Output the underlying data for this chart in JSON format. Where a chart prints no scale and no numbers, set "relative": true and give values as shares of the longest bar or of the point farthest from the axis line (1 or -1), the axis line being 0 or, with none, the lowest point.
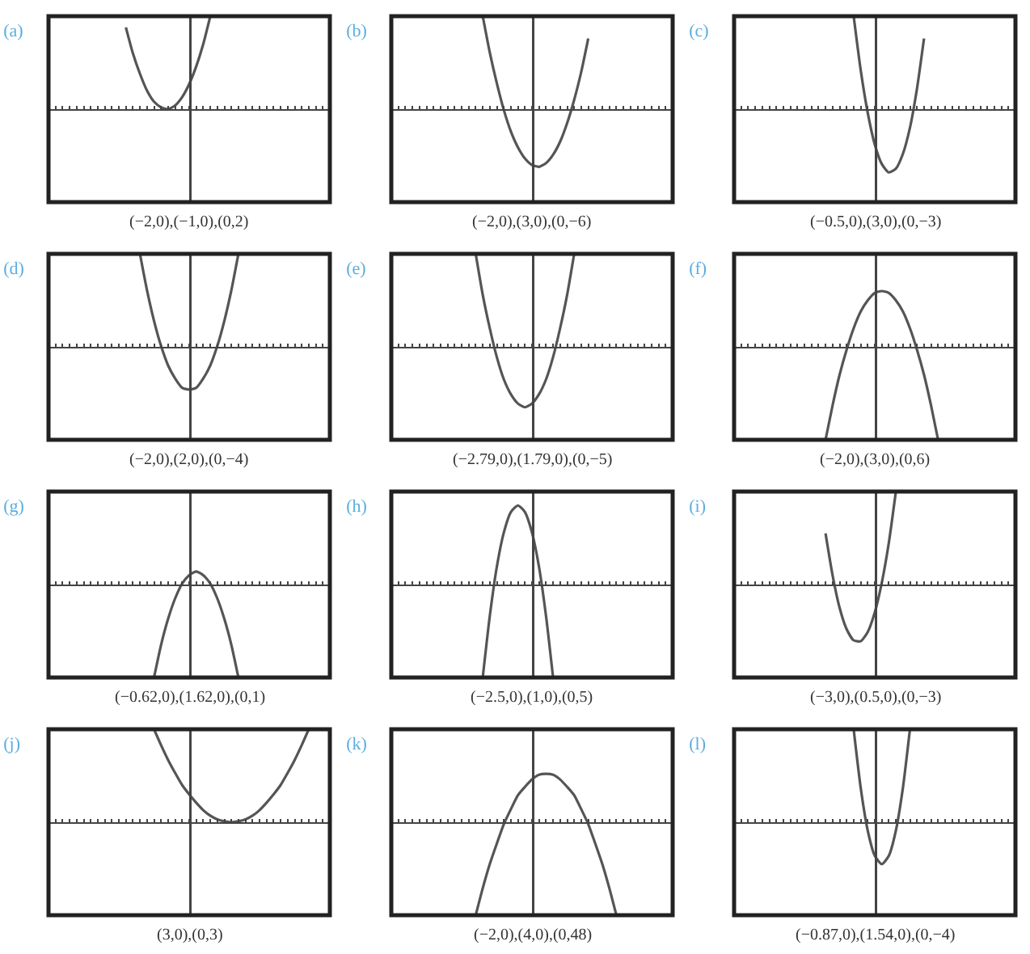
{
  "chart_data": [
    {
      "type": "line",
      "title": "(a)",
      "relative": true,
      "color": "#555555",
      "annotations": [
        "(−2,0),(−1,0),(0,2)"
      ],
      "categories": [
        null,
        null,
        null,
        null,
        null,
        null,
        null,
        null,
        null,
        null,
        null,
        null,
        null,
        null,
        null,
        null,
        null,
        null,
        null,
        null,
        null,
        null,
        null,
        null,
        null,
        null,
        null,
        null,
        null,
        null,
        null,
        null,
        null,
        null,
        null,
        null,
        null,
        null,
        null,
        null,
        null
      ],
      "values": [
        null,
        null,
        null,
        null,
        null,
        null,
        null,
        null,
        null,
        null,
        null,
        0.88,
        0.6,
        0.38,
        0.2,
        0.08,
        0.02,
        0.0,
        0.04,
        0.13,
        0.27,
        0.46,
        0.7,
        1.0,
        null,
        null,
        null,
        null,
        null,
        null,
        null,
        null,
        null,
        null,
        null,
        null,
        null,
        null,
        null,
        null,
        null
      ]
    },
    {
      "type": "line",
      "title": "(b)",
      "relative": true,
      "color": "#555555",
      "annotations": [
        "(−2,0),(3,0),(0,−6)"
      ],
      "categories": [
        null,
        null,
        null,
        null,
        null,
        null,
        null,
        null,
        null,
        null,
        null,
        null,
        null,
        null,
        null,
        null,
        null,
        null,
        null,
        null,
        null,
        null,
        null,
        null,
        null,
        null,
        null,
        null,
        null,
        null,
        null,
        null,
        null,
        null,
        null,
        null,
        null,
        null,
        null,
        null,
        null
      ],
      "values": [
        null,
        null,
        null,
        null,
        null,
        null,
        null,
        null,
        null,
        null,
        null,
        null,
        null,
        1.0,
        0.61,
        0.28,
        -0.01,
        -0.24,
        -0.41,
        -0.53,
        -0.6,
        -0.62,
        -0.58,
        -0.49,
        -0.35,
        -0.15,
        0.1,
        0.4,
        0.76,
        null,
        null,
        null,
        null,
        null,
        null,
        null,
        null,
        null,
        null,
        null,
        null
      ]
    },
    {
      "type": "line",
      "title": "(c)",
      "relative": true,
      "color": "#555555",
      "annotations": [
        "(−0.5,0),(3,0),(0,−3)"
      ],
      "categories": [
        null,
        null,
        null,
        null,
        null,
        null,
        null,
        null,
        null,
        null,
        null,
        null,
        null,
        null,
        null,
        null,
        null,
        null,
        null,
        null,
        null,
        null,
        null,
        null,
        null,
        null,
        null,
        null,
        null,
        null,
        null,
        null,
        null,
        null,
        null,
        null,
        null,
        null,
        null,
        null,
        null
      ],
      "values": [
        null,
        null,
        null,
        null,
        null,
        null,
        null,
        null,
        null,
        null,
        null,
        null,
        null,
        null,
        null,
        null,
        null,
        1.0,
        0.42,
        -0.04,
        -0.38,
        -0.59,
        -0.68,
        -0.64,
        -0.48,
        -0.2,
        0.22,
        0.76,
        null,
        null,
        null,
        null,
        null,
        null,
        null,
        null,
        null,
        null,
        null,
        null,
        null
      ]
    },
    {
      "type": "line",
      "title": "(d)",
      "relative": true,
      "color": "#555555",
      "annotations": [
        "(−2,0),(2,0),(0,−4)"
      ],
      "categories": [
        null,
        null,
        null,
        null,
        null,
        null,
        null,
        null,
        null,
        null,
        null,
        null,
        null,
        null,
        null,
        null,
        null,
        null,
        null,
        null,
        null,
        null,
        null,
        null,
        null,
        null,
        null,
        null,
        null,
        null,
        null,
        null,
        null,
        null,
        null,
        null,
        null,
        null,
        null,
        null,
        null
      ],
      "values": [
        null,
        null,
        null,
        null,
        null,
        null,
        null,
        null,
        null,
        null,
        null,
        null,
        null,
        1.0,
        0.61,
        0.28,
        0.01,
        -0.2,
        -0.34,
        -0.44,
        -0.46,
        -0.44,
        -0.34,
        -0.2,
        0.01,
        0.28,
        0.61,
        1.0,
        null,
        null,
        null,
        null,
        null,
        null,
        null,
        null,
        null,
        null,
        null,
        null,
        null
      ]
    },
    {
      "type": "line",
      "title": "(e)",
      "relative": true,
      "color": "#555555",
      "annotations": [
        "(−2.79,0),(1.79,0),(0,−5)"
      ],
      "categories": [
        null,
        null,
        null,
        null,
        null,
        null,
        null,
        null,
        null,
        null,
        null,
        null,
        null,
        null,
        null,
        null,
        null,
        null,
        null,
        null,
        null,
        null,
        null,
        null,
        null,
        null,
        null,
        null,
        null,
        null,
        null,
        null,
        null,
        null,
        null,
        null,
        null,
        null,
        null,
        null,
        null
      ],
      "values": [
        null,
        null,
        null,
        null,
        null,
        null,
        null,
        null,
        null,
        null,
        null,
        null,
        1.0,
        0.56,
        0.2,
        -0.11,
        -0.35,
        -0.51,
        -0.61,
        -0.65,
        -0.61,
        -0.51,
        -0.35,
        -0.11,
        0.2,
        0.56,
        1.0,
        null,
        null,
        null,
        null,
        null,
        null,
        null,
        null,
        null,
        null,
        null,
        null,
        null,
        null
      ]
    },
    {
      "type": "line",
      "title": "(f)",
      "relative": true,
      "color": "#555555",
      "annotations": [
        "(−2,0),(3,0),(0,6)"
      ],
      "categories": [
        null,
        null,
        null,
        null,
        null,
        null,
        null,
        null,
        null,
        null,
        null,
        null,
        null,
        null,
        null,
        null,
        null,
        null,
        null,
        null,
        null,
        null,
        null,
        null,
        null,
        null,
        null,
        null,
        null,
        null,
        null,
        null,
        null,
        null,
        null,
        null,
        null,
        null,
        null,
        null,
        null
      ],
      "values": [
        null,
        null,
        null,
        null,
        null,
        null,
        null,
        null,
        null,
        null,
        null,
        null,
        null,
        -1.0,
        -0.63,
        -0.3,
        -0.03,
        0.2,
        0.38,
        0.5,
        0.58,
        0.6,
        0.58,
        0.5,
        0.38,
        0.2,
        -0.03,
        -0.3,
        -0.63,
        -1.0,
        null,
        null,
        null,
        null,
        null,
        null,
        null,
        null,
        null,
        null,
        null
      ]
    },
    {
      "type": "line",
      "title": "(g)",
      "relative": true,
      "color": "#555555",
      "annotations": [
        "(−0.62,0),(1.62,0),(0,1)"
      ],
      "categories": [
        null,
        null,
        null,
        null,
        null,
        null,
        null,
        null,
        null,
        null,
        null,
        null,
        null,
        null,
        null,
        null,
        null,
        null,
        null,
        null,
        null,
        null,
        null,
        null,
        null,
        null,
        null,
        null,
        null,
        null,
        null,
        null,
        null,
        null,
        null,
        null,
        null,
        null,
        null,
        null,
        null
      ],
      "values": [
        null,
        null,
        null,
        null,
        null,
        null,
        null,
        null,
        null,
        null,
        null,
        null,
        null,
        null,
        null,
        -1.0,
        -0.65,
        -0.37,
        -0.15,
        0.01,
        0.1,
        0.14,
        0.1,
        0.01,
        -0.15,
        -0.37,
        -0.65,
        -1.0,
        null,
        null,
        null,
        null,
        null,
        null,
        null,
        null,
        null,
        null,
        null,
        null,
        null
      ]
    },
    {
      "type": "line",
      "title": "(h)",
      "relative": true,
      "color": "#555555",
      "annotations": [
        "(−2.5,0),(1,0),(0,5)"
      ],
      "categories": [
        null,
        null,
        null,
        null,
        null,
        null,
        null,
        null,
        null,
        null,
        null,
        null,
        null,
        null,
        null,
        null,
        null,
        null,
        null,
        null,
        null,
        null,
        null,
        null,
        null,
        null,
        null,
        null,
        null,
        null,
        null,
        null,
        null,
        null,
        null,
        null,
        null,
        null,
        null,
        null,
        null
      ],
      "values": [
        null,
        null,
        null,
        null,
        null,
        null,
        null,
        null,
        null,
        null,
        null,
        null,
        null,
        -1.0,
        -0.34,
        0.19,
        0.56,
        0.78,
        0.85,
        0.78,
        0.56,
        0.19,
        -0.34,
        -1.0,
        null,
        null,
        null,
        null,
        null,
        null,
        null,
        null,
        null,
        null,
        null,
        null,
        null,
        null,
        null,
        null,
        null
      ]
    },
    {
      "type": "line",
      "title": "(i)",
      "relative": true,
      "color": "#555555",
      "annotations": [
        "(−3,0),(0.5,0),(0,−3)"
      ],
      "categories": [
        null,
        null,
        null,
        null,
        null,
        null,
        null,
        null,
        null,
        null,
        null,
        null,
        null,
        null,
        null,
        null,
        null,
        null,
        null,
        null,
        null,
        null,
        null,
        null,
        null,
        null,
        null,
        null,
        null,
        null,
        null,
        null,
        null,
        null,
        null,
        null,
        null,
        null,
        null,
        null,
        null
      ],
      "values": [
        null,
        null,
        null,
        null,
        null,
        null,
        null,
        null,
        null,
        null,
        null,
        null,
        null,
        0.55,
        0.1,
        -0.25,
        -0.48,
        -0.6,
        -0.61,
        -0.51,
        -0.3,
        0.02,
        0.45,
        1.0,
        null,
        null,
        null,
        null,
        null,
        null,
        null,
        null,
        null,
        null,
        null,
        null,
        null,
        null,
        null,
        null,
        null
      ]
    },
    {
      "type": "line",
      "title": "(j)",
      "relative": true,
      "color": "#555555",
      "annotations": [
        "(3,0),(0,3)"
      ],
      "categories": [
        null,
        null,
        null,
        null,
        null,
        null,
        null,
        null,
        null,
        null,
        null,
        null,
        null,
        null,
        null,
        null,
        null,
        null,
        null,
        null,
        null,
        null,
        null,
        null,
        null,
        null,
        null,
        null,
        null,
        null,
        null,
        null,
        null,
        null,
        null,
        null,
        null,
        null,
        null,
        null,
        null
      ],
      "values": [
        null,
        null,
        null,
        null,
        null,
        null,
        null,
        null,
        null,
        null,
        null,
        null,
        null,
        null,
        null,
        1.0,
        0.83,
        0.67,
        0.53,
        0.4,
        0.3,
        0.21,
        0.13,
        0.07,
        0.03,
        0.01,
        0.0,
        0.01,
        0.03,
        0.07,
        0.13,
        0.21,
        0.3,
        0.4,
        0.53,
        0.67,
        0.83,
        1.0,
        null,
        null,
        null
      ]
    },
    {
      "type": "line",
      "title": "(k)",
      "relative": true,
      "color": "#555555",
      "annotations": [
        "(−2,0),(4,0),(0,48)"
      ],
      "categories": [
        null,
        null,
        null,
        null,
        null,
        null,
        null,
        null,
        null,
        null,
        null,
        null,
        null,
        null,
        null,
        null,
        null,
        null,
        null,
        null,
        null,
        null,
        null,
        null,
        null,
        null,
        null,
        null,
        null,
        null,
        null,
        null,
        null,
        null,
        null,
        null,
        null,
        null,
        null,
        null,
        null
      ],
      "values": [
        null,
        null,
        null,
        null,
        null,
        null,
        null,
        null,
        null,
        null,
        null,
        null,
        -1.0,
        -0.71,
        -0.45,
        -0.23,
        -0.02,
        0.14,
        0.29,
        0.38,
        0.46,
        0.51,
        0.52,
        0.51,
        0.46,
        0.38,
        0.29,
        0.14,
        -0.02,
        -0.23,
        -0.45,
        -0.71,
        -1.0,
        null,
        null,
        null,
        null,
        null,
        null,
        null,
        null
      ]
    },
    {
      "type": "line",
      "title": "(l)",
      "relative": true,
      "color": "#555555",
      "annotations": [
        "(−0.87,0),(1.54,0),(0,−4)"
      ],
      "categories": [
        null,
        null,
        null,
        null,
        null,
        null,
        null,
        null,
        null,
        null,
        null,
        null,
        null,
        null,
        null,
        null,
        null,
        null,
        null,
        null,
        null,
        null,
        null,
        null,
        null,
        null,
        null,
        null,
        null,
        null,
        null,
        null,
        null,
        null,
        null,
        null,
        null,
        null,
        null,
        null,
        null
      ],
      "values": [
        null,
        null,
        null,
        null,
        null,
        null,
        null,
        null,
        null,
        null,
        null,
        null,
        null,
        null,
        null,
        null,
        null,
        1.0,
        0.37,
        -0.09,
        -0.36,
        -0.45,
        -0.36,
        -0.09,
        0.37,
        1.0,
        null,
        null,
        null,
        null,
        null,
        null,
        null,
        null,
        null,
        null,
        null,
        null,
        null,
        null,
        null
      ]
    }
  ]
}
